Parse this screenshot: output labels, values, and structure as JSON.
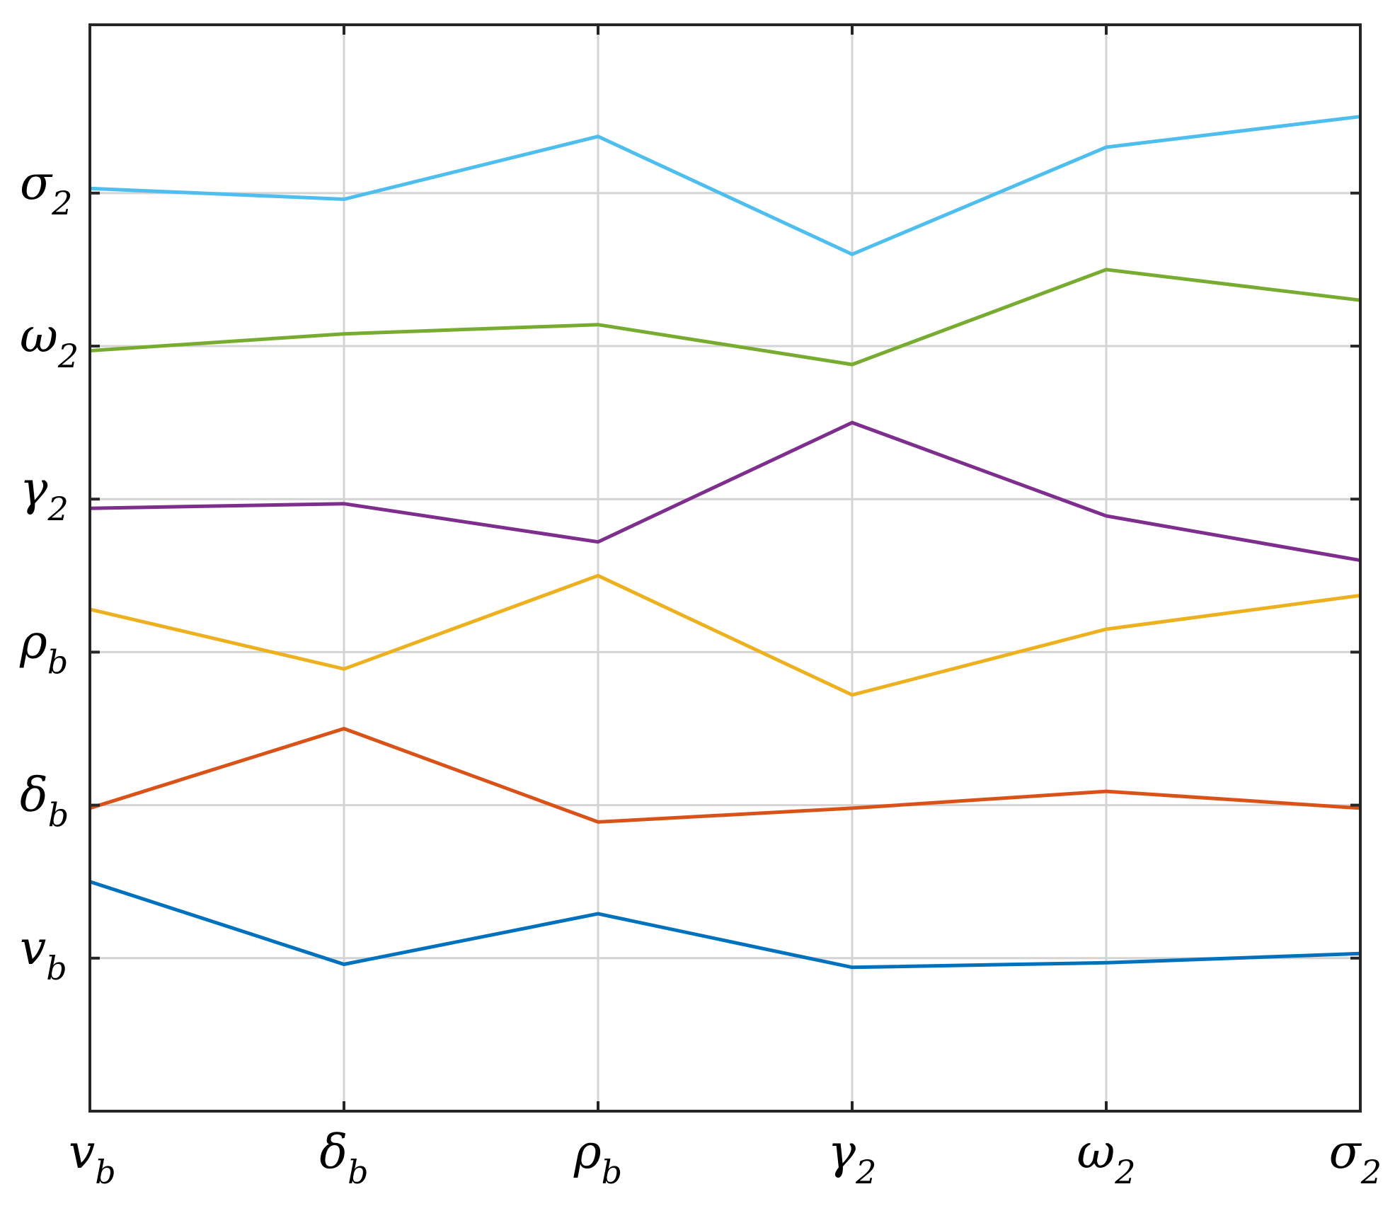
{
  "chart_data": {
    "type": "line",
    "title": "",
    "xlabel": "",
    "ylabel": "",
    "x_ticks": [
      {
        "sym": "v",
        "sub": "b"
      },
      {
        "sym": "δ",
        "sub": "b"
      },
      {
        "sym": "ρ",
        "sub": "b"
      },
      {
        "sym": "γ",
        "sub": "2"
      },
      {
        "sym": "ω",
        "sub": "2"
      },
      {
        "sym": "σ",
        "sub": "2"
      }
    ],
    "y_ticks": [
      {
        "sym": "v",
        "sub": "b",
        "value": 1
      },
      {
        "sym": "δ",
        "sub": "b",
        "value": 2
      },
      {
        "sym": "ρ",
        "sub": "b",
        "value": 3
      },
      {
        "sym": "γ",
        "sub": "2",
        "value": 4
      },
      {
        "sym": "ω",
        "sub": "2",
        "value": 5
      },
      {
        "sym": "σ",
        "sub": "2",
        "value": 6
      }
    ],
    "ylim": [
      0,
      7.1
    ],
    "grid": true,
    "series": [
      {
        "color": "#0072BD",
        "values": [
          1.5,
          0.96,
          1.29,
          0.94,
          0.97,
          1.03
        ]
      },
      {
        "color": "#D95319",
        "values": [
          1.98,
          2.5,
          1.89,
          1.98,
          2.09,
          1.98
        ]
      },
      {
        "color": "#EDB120",
        "values": [
          3.28,
          2.89,
          3.5,
          2.72,
          3.15,
          3.37
        ]
      },
      {
        "color": "#7E2F8E",
        "values": [
          3.94,
          3.97,
          3.72,
          4.5,
          3.89,
          3.6
        ]
      },
      {
        "color": "#77AC30",
        "values": [
          4.97,
          5.08,
          5.14,
          4.88,
          5.5,
          5.3
        ]
      },
      {
        "color": "#4DBEEE",
        "values": [
          6.03,
          5.96,
          6.37,
          5.6,
          6.3,
          6.5
        ]
      }
    ]
  }
}
